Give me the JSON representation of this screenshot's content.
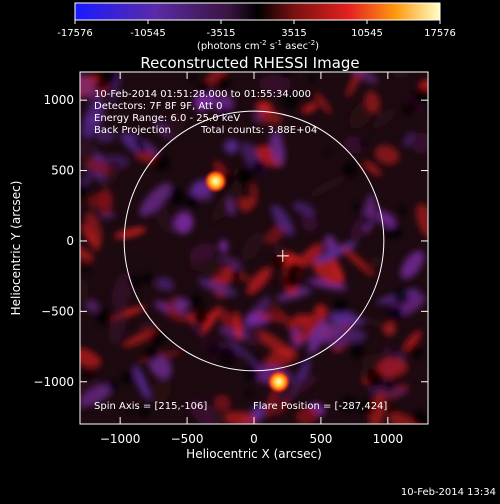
{
  "chart_data": {
    "type": "heatmap",
    "title": "Reconstructed RHESSI Image",
    "xlabel": "Heliocentric X (arcsec)",
    "ylabel": "Heliocentric Y (arcsec)",
    "xlim": [
      -1300,
      1300
    ],
    "ylim": [
      -1300,
      1200
    ],
    "xticks": [
      -1000,
      -500,
      0,
      500,
      1000
    ],
    "yticks": [
      -1000,
      -500,
      0,
      500,
      1000
    ],
    "colorbar": {
      "ticks": [
        "-17576",
        "-10545",
        "-3515",
        "3515",
        "10545",
        "17576"
      ],
      "range": [
        -17576,
        17576
      ],
      "unit_main": "(photons cm",
      "unit_sup1": "-2",
      "unit_mid": " s",
      "unit_sup2": "-1",
      "unit_end": " asec",
      "unit_sup3": "-2",
      "unit_close": ")"
    },
    "annotations": {
      "time_range": "10-Feb-2014 01:51:28.000 to 01:55:34.000",
      "detectors": "Detectors: 7F 8F 9F, Att 0",
      "energy": "Energy Range: 6.0 - 25.0 keV",
      "method": "Back Projection",
      "counts": "Total counts: 3.88E+04",
      "spin_axis": "Spin Axis = [215,-106]",
      "flare_position": "Flare Position = [-287,424]"
    },
    "solar_disk_radius": 970,
    "sun_center_marker": [
      215,
      -106
    ],
    "bright_sources": [
      {
        "x": -287,
        "y": 424,
        "value": 17576
      },
      {
        "x": 185,
        "y": -1000,
        "value": 17576
      }
    ]
  },
  "footer": {
    "timestamp": "10-Feb-2014 13:34"
  }
}
